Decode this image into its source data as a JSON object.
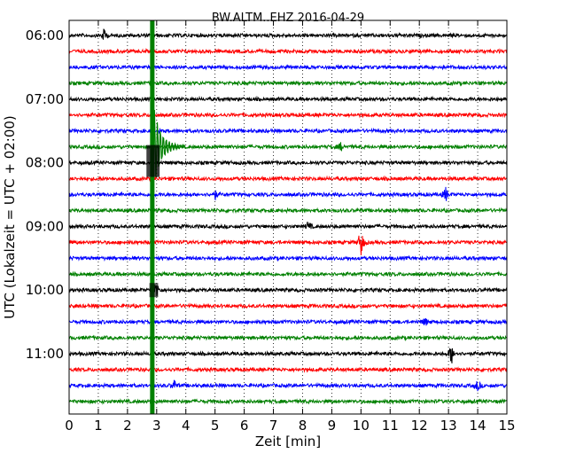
{
  "chart_data": {
    "type": "line",
    "subtype": "seismogram-helicorder",
    "title": "BW.ALTM..EHZ 2016-04-29",
    "xlabel": "Zeit  [min]",
    "ylabel": "UTC (Lokalzeit = UTC + 02:00)",
    "xlim": [
      0,
      15
    ],
    "x_ticks": [
      "0",
      "1",
      "2",
      "3",
      "4",
      "5",
      "6",
      "7",
      "8",
      "9",
      "10",
      "11",
      "12",
      "13",
      "14",
      "15"
    ],
    "y_tick_labels": [
      "06:00",
      "07:00",
      "08:00",
      "09:00",
      "10:00",
      "11:00"
    ],
    "minutes_per_trace": 15,
    "vertical_grid": "dotted",
    "trace_colors": [
      "#000000",
      "#ff0000",
      "#0000ff",
      "#008000"
    ],
    "traces": [
      {
        "start": "06:00",
        "color": "#000000",
        "events": [
          {
            "minute": 1.2,
            "amp": 0.35
          }
        ]
      },
      {
        "start": "06:15",
        "color": "#ff0000",
        "events": []
      },
      {
        "start": "06:30",
        "color": "#0000ff",
        "events": []
      },
      {
        "start": "06:45",
        "color": "#008000",
        "events": []
      },
      {
        "start": "07:00",
        "color": "#000000",
        "events": []
      },
      {
        "start": "07:15",
        "color": "#ff0000",
        "events": []
      },
      {
        "start": "07:30",
        "color": "#0000ff",
        "events": []
      },
      {
        "start": "07:45",
        "color": "#008000",
        "events": [
          {
            "minute": 9.3,
            "amp": 0.2
          }
        ]
      },
      {
        "start": "08:00",
        "color": "#000000",
        "events": []
      },
      {
        "start": "08:15",
        "color": "#ff0000",
        "events": []
      },
      {
        "start": "08:30",
        "color": "#0000ff",
        "events": [
          {
            "minute": 5.0,
            "amp": 0.25
          },
          {
            "minute": 12.9,
            "amp": 0.4
          }
        ]
      },
      {
        "start": "08:45",
        "color": "#008000",
        "events": []
      },
      {
        "start": "09:00",
        "color": "#000000",
        "events": [
          {
            "minute": 8.2,
            "amp": 0.3
          }
        ]
      },
      {
        "start": "09:15",
        "color": "#ff0000",
        "events": [
          {
            "minute": 10.0,
            "amp": 0.9
          }
        ]
      },
      {
        "start": "09:30",
        "color": "#0000ff",
        "events": []
      },
      {
        "start": "09:45",
        "color": "#008000",
        "events": []
      },
      {
        "start": "10:00",
        "color": "#000000",
        "events": [
          {
            "minute": 3.0,
            "amp": 0.45
          }
        ]
      },
      {
        "start": "10:15",
        "color": "#ff0000",
        "events": []
      },
      {
        "start": "10:30",
        "color": "#0000ff",
        "events": [
          {
            "minute": 12.2,
            "amp": 0.25
          }
        ]
      },
      {
        "start": "10:45",
        "color": "#008000",
        "events": []
      },
      {
        "start": "11:00",
        "color": "#000000",
        "events": [
          {
            "minute": 13.1,
            "amp": 0.6
          }
        ]
      },
      {
        "start": "11:15",
        "color": "#ff0000",
        "events": []
      },
      {
        "start": "11:30",
        "color": "#0000ff",
        "events": [
          {
            "minute": 3.6,
            "amp": 0.3
          },
          {
            "minute": 14.0,
            "amp": 0.3
          }
        ]
      },
      {
        "start": "11:45",
        "color": "#008000",
        "events": []
      }
    ],
    "large_event": {
      "start_trace": "06:00",
      "minute": 2.85,
      "color": "#008000"
    }
  }
}
